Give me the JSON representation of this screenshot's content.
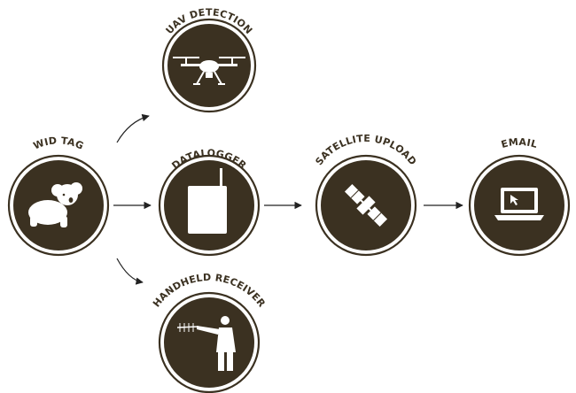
{
  "colors": {
    "badge": "#3b3121",
    "icon": "#ffffff",
    "arrow": "#222222"
  },
  "nodes": {
    "wid_tag": {
      "label": "WID TAG",
      "icon": "koala-icon"
    },
    "uav": {
      "label": "UAV DETECTION",
      "icon": "drone-icon"
    },
    "datalogger": {
      "label": "DATALOGGER",
      "icon": "datalogger-icon"
    },
    "handheld": {
      "label": "HANDHELD RECEIVER",
      "icon": "person-antenna-icon"
    },
    "satellite": {
      "label": "SATELLITE UPLOAD",
      "icon": "satellite-icon"
    },
    "email": {
      "label": "EMAIL",
      "icon": "laptop-icon"
    }
  }
}
